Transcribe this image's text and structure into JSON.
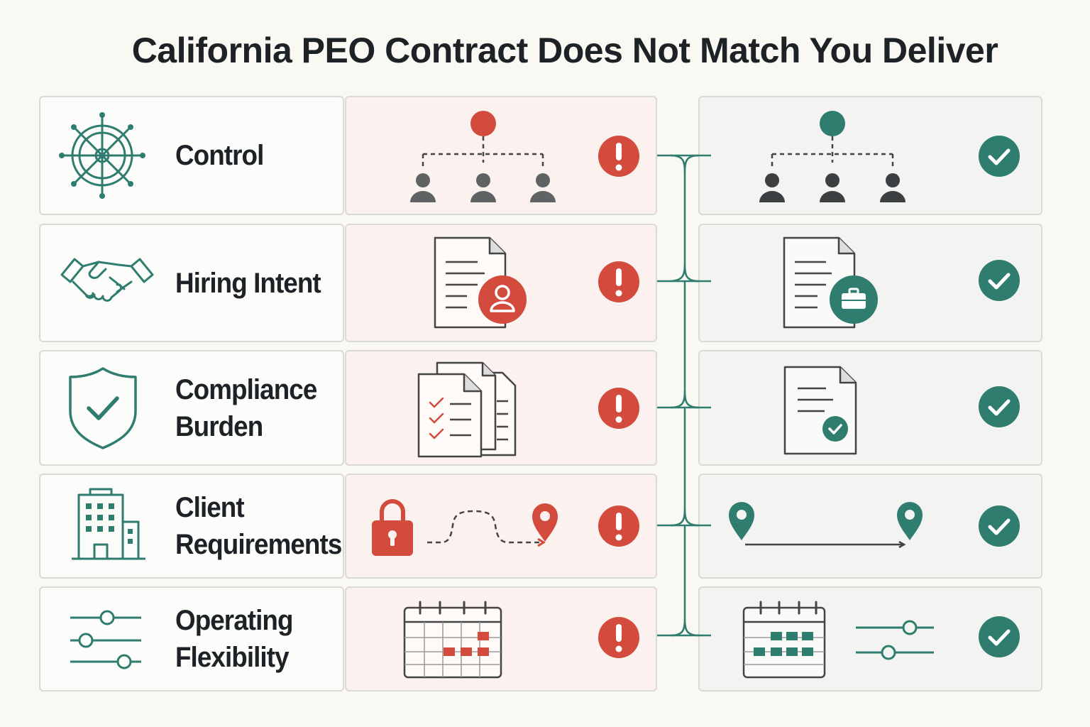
{
  "title": "California PEO Contract Does Not Match You Deliver",
  "colors": {
    "teal": "#2e7d6e",
    "red": "#d24b3c",
    "gray": "#5f6364",
    "dark": "#1d2226",
    "bad_bg": "#fbf1ee",
    "good_bg": "#f3f4f1"
  },
  "rows": [
    {
      "label_lines": [
        "Control"
      ],
      "label_icon": "ship-wheel-icon",
      "bad_icon": "org-chart-icon",
      "good_icon": "org-chart-icon",
      "bad_status": "alert-icon",
      "good_status": "check-icon"
    },
    {
      "label_lines": [
        "Hiring Intent"
      ],
      "label_icon": "handshake-icon",
      "bad_icon": "document-person-icon",
      "good_icon": "document-briefcase-icon",
      "bad_status": "alert-icon",
      "good_status": "check-icon"
    },
    {
      "label_lines": [
        "Compliance",
        "Burden"
      ],
      "label_icon": "shield-check-icon",
      "bad_icon": "stacked-checklists-icon",
      "good_icon": "document-check-icon",
      "bad_status": "alert-icon",
      "good_status": "check-icon"
    },
    {
      "label_lines": [
        "Client",
        "Requirements"
      ],
      "label_icon": "office-building-icon",
      "bad_icon": "locked-winding-route-icon",
      "good_icon": "direct-route-icon",
      "bad_status": "alert-icon",
      "good_status": "check-icon"
    },
    {
      "label_lines": [
        "Operating",
        "Flexibility"
      ],
      "label_icon": "sliders-icon",
      "bad_icon": "calendar-sparse-icon",
      "good_icon": "calendar-sliders-icon",
      "bad_status": "alert-icon",
      "good_status": "check-icon"
    }
  ]
}
